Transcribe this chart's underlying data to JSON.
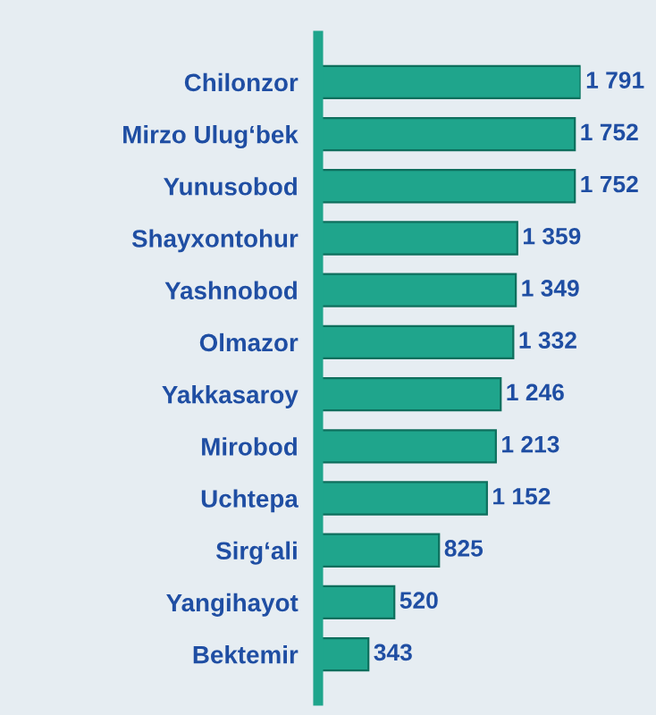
{
  "chart_data": {
    "type": "bar",
    "orientation": "horizontal",
    "categories": [
      "Chilonzor",
      "Mirzo Ulug‘bek",
      "Yunusobod",
      "Shayxontohur",
      "Yashnobod",
      "Olmazor",
      "Yakkasaroy",
      "Mirobod",
      "Uchtepa",
      "Sirg‘ali",
      "Yangihayot",
      "Bektemir"
    ],
    "values": [
      1791,
      1752,
      1752,
      1359,
      1349,
      1332,
      1246,
      1213,
      1152,
      825,
      520,
      343
    ],
    "value_labels": [
      "1 791",
      "1 752",
      "1 752",
      "1 359",
      "1 349",
      "1 332",
      "1 246",
      "1 213",
      "1 152",
      "825",
      "520",
      "343"
    ],
    "color": "#1fa58c",
    "grid": false,
    "legend": false
  }
}
